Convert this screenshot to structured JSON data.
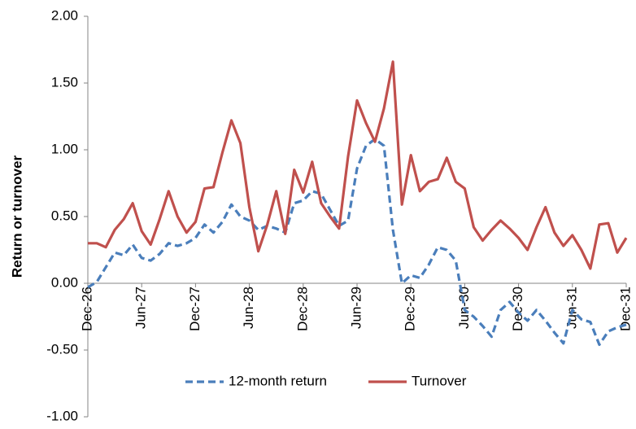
{
  "chart_data": {
    "type": "line",
    "ylabel": "Return or turnover",
    "categories": [
      "Dec-26",
      null,
      null,
      null,
      null,
      null,
      "Jun-27",
      null,
      null,
      null,
      null,
      null,
      "Dec-27",
      null,
      null,
      null,
      null,
      null,
      "Jun-28",
      null,
      null,
      null,
      null,
      null,
      "Dec-28",
      null,
      null,
      null,
      null,
      null,
      "Jun-29",
      null,
      null,
      null,
      null,
      null,
      "Dec-29",
      null,
      null,
      null,
      null,
      null,
      "Jun-30",
      null,
      null,
      null,
      null,
      null,
      "Dec-30",
      null,
      null,
      null,
      null,
      null,
      "Jun-31",
      null,
      null,
      null,
      null,
      null,
      "Dec-31"
    ],
    "series": [
      {
        "name": "12-month return",
        "color": "#4a7ebb",
        "dash": true,
        "values": [
          -0.03,
          0.01,
          0.12,
          0.23,
          0.21,
          0.29,
          0.19,
          0.17,
          0.22,
          0.3,
          0.28,
          0.3,
          0.34,
          0.44,
          0.38,
          0.46,
          0.59,
          0.5,
          0.47,
          0.4,
          0.43,
          0.41,
          0.38,
          0.6,
          0.62,
          0.69,
          0.67,
          0.55,
          0.43,
          0.47,
          0.86,
          1.03,
          1.08,
          1.03,
          0.4,
          0.0,
          0.06,
          0.04,
          0.14,
          0.27,
          0.25,
          0.17,
          -0.2,
          -0.25,
          -0.32,
          -0.4,
          -0.2,
          -0.14,
          -0.22,
          -0.28,
          -0.2,
          -0.28,
          -0.37,
          -0.45,
          -0.2,
          -0.27,
          -0.29,
          -0.46,
          -0.36,
          -0.33,
          -0.31
        ]
      },
      {
        "name": "Turnover",
        "color": "#c0504d",
        "dash": false,
        "values": [
          0.3,
          0.3,
          0.27,
          0.4,
          0.48,
          0.6,
          0.39,
          0.29,
          0.48,
          0.69,
          0.5,
          0.38,
          0.46,
          0.71,
          0.72,
          0.98,
          1.22,
          1.05,
          0.57,
          0.24,
          0.44,
          0.69,
          0.37,
          0.85,
          0.68,
          0.91,
          0.6,
          0.5,
          0.41,
          0.95,
          1.37,
          1.2,
          1.06,
          1.31,
          1.66,
          0.59,
          0.96,
          0.69,
          0.76,
          0.78,
          0.94,
          0.76,
          0.71,
          0.42,
          0.32,
          0.4,
          0.47,
          0.41,
          0.34,
          0.25,
          0.42,
          0.57,
          0.38,
          0.28,
          0.36,
          0.25,
          0.11,
          0.44,
          0.45,
          0.23,
          0.34
        ]
      }
    ],
    "ylim": [
      -1,
      2
    ],
    "yticks": [
      {
        "value": -1,
        "label": "-1.00"
      },
      {
        "value": -0.5,
        "label": "-0.50"
      },
      {
        "value": 0,
        "label": "0.00"
      },
      {
        "value": 0.5,
        "label": "0.50"
      },
      {
        "value": 1,
        "label": "1.00"
      },
      {
        "value": 1.5,
        "label": "1.50"
      },
      {
        "value": 2,
        "label": "2.00"
      }
    ],
    "grid": false,
    "legend": "bottom"
  }
}
